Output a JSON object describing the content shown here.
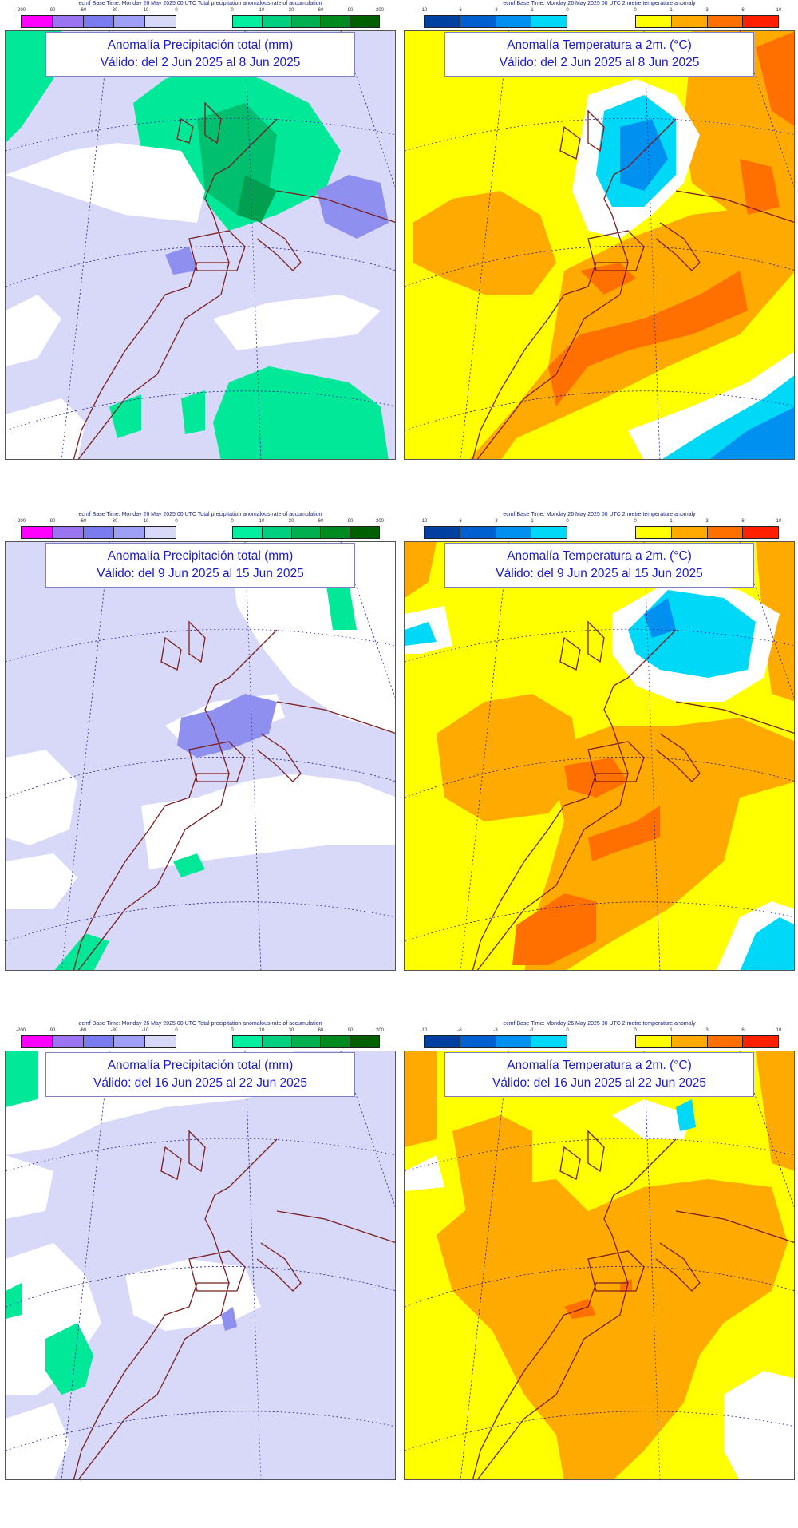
{
  "legends": {
    "precip": {
      "caption": "ecmf  Base Time: Monday 26 May 2025 00 UTC Total precipitation anomalous rate of accumulation",
      "negative_ticks": [
        "-200",
        "-90",
        "-60",
        "-30",
        "-10",
        "0"
      ],
      "positive_ticks": [
        "0",
        "10",
        "30",
        "60",
        "90",
        "200"
      ],
      "negative_colors": [
        "#ff00ff",
        "#9b74f2",
        "#7b7bf0",
        "#9f9ff8",
        "#d8d8f8"
      ],
      "positive_colors": [
        "#00f0a0",
        "#00d080",
        "#00b050",
        "#008a20",
        "#006000"
      ]
    },
    "temp": {
      "caption": "ecmf  Base Time: Monday 26 May 2025 00 UTC 2 metre temperature anomaly",
      "negative_ticks": [
        "-10",
        "-6",
        "-3",
        "-1",
        "0"
      ],
      "positive_ticks": [
        "0",
        "1",
        "3",
        "6",
        "10"
      ],
      "negative_colors": [
        "#0040a0",
        "#0060d0",
        "#0090f0",
        "#00d8f8"
      ],
      "positive_colors": [
        "#ffff00",
        "#ffaa00",
        "#ff7000",
        "#ff2000"
      ]
    }
  },
  "panels": [
    {
      "kind": "precip",
      "title": "Anomalía Precipitación total (mm)",
      "valid": "Válido: del 2 Jun 2025 al 8 Jun 2025"
    },
    {
      "kind": "temp",
      "title": "Anomalía Temperatura a 2m. (°C)",
      "valid": "Válido: del 2 Jun 2025 al 8 Jun 2025"
    },
    {
      "kind": "precip",
      "title": "Anomalía Precipitación total (mm)",
      "valid": "Válido: del 9 Jun 2025 al 15 Jun 2025"
    },
    {
      "kind": "temp",
      "title": "Anomalía Temperatura a 2m. (°C)",
      "valid": "Válido: del 9 Jun 2025 al 15 Jun 2025"
    },
    {
      "kind": "precip",
      "title": "Anomalía Precipitación total (mm)",
      "valid": "Válido: del 16 Jun 2025 al 22 Jun 2025"
    },
    {
      "kind": "temp",
      "title": "Anomalía Temperatura a 2m. (°C)",
      "valid": "Válido: del 16 Jun 2025 al 22 Jun 2025"
    }
  ],
  "colors": {
    "precip_background": "#d8d8f8",
    "precip_neutral": "#ffffff",
    "temp_background": "#ffff00",
    "coastline": "#7a1f1f",
    "graticule": "#2020a0"
  }
}
